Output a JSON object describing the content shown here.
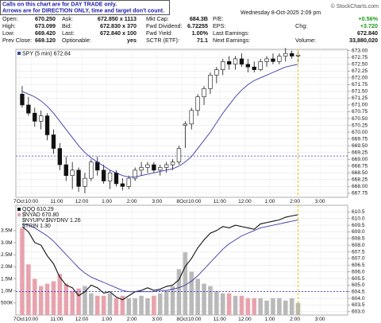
{
  "header": {
    "note": [
      "Calls on this chart are for DAY TRADE only.",
      "Arrows are for DIRECTION ONLY, time and target don't count."
    ],
    "date": "Wednesday  8-Oct-2025  2:09 pm",
    "credit": "© StockCharts.com",
    "quote": [
      [
        {
          "label": "Open:",
          "value": "670.250"
        },
        {
          "label": "Ask:",
          "value": "672.850 x 1113"
        },
        {
          "label": "Mkt Cap:",
          "value": "684.3B"
        },
        {
          "label": "P/E:"
        },
        {
          "value": "+0.56%",
          "color": "#1a9a1a"
        }
      ],
      [
        {
          "label": "High:",
          "value": "673.099"
        },
        {
          "label": "Bid:",
          "value": "672.830 x 370"
        },
        {
          "label": "Fwd Dividend:",
          "value": "6.72255"
        },
        {
          "label": "EPS:"
        },
        {
          "label": "Chg:",
          "value": "+3.720",
          "color": "#1a9a1a"
        }
      ],
      [
        {
          "label": "Low:",
          "value": "669.420"
        },
        {
          "label": "Last:",
          "value": "672.840 x 100"
        },
        {
          "label": "Fwd Yield:",
          "value": "1.00%"
        },
        {
          "label": "Last Earnings:"
        },
        {
          "value": "672.840"
        }
      ],
      [
        {
          "label": "Prev Close:",
          "value": "669.120"
        },
        {
          "label": "Optionable:",
          "value": "yes"
        },
        {
          "label": "SCTR (ETF):",
          "value": "71.1"
        },
        {
          "label": "Next Earnings:"
        },
        {
          "label": "Volume:",
          "value": "33,880,020"
        }
      ]
    ]
  },
  "chart_data": [
    {
      "type": "candlestick",
      "legend": "SPY (5 min) 672.84",
      "legend_color": "#3344aa",
      "categories": [
        "7Oct",
        null,
        "10:00",
        null,
        null,
        null,
        "11:00",
        null,
        null,
        null,
        "12:00",
        null,
        null,
        null,
        "1:00",
        null,
        null,
        null,
        "2:00",
        null,
        null,
        null,
        "3:00",
        null,
        null,
        null,
        "8Oct",
        null,
        "10:00",
        null,
        null,
        null,
        "11:00",
        null,
        null,
        null,
        "12:00",
        null,
        null,
        null,
        "1:00",
        null,
        null,
        null,
        "2:00",
        null,
        null,
        null,
        "3:00",
        null,
        null,
        null
      ],
      "open": [
        671.4,
        671.0,
        670.7,
        670.4,
        670.6,
        669.9,
        669.4,
        668.8,
        668.4,
        668.6,
        668.0,
        668.3,
        668.9,
        668.6,
        668.2,
        668.5,
        668.1,
        668.0,
        668.3,
        668.6,
        668.7,
        668.8,
        668.6,
        668.7,
        668.8,
        668.9,
        670.25,
        670.3,
        670.8,
        671.3,
        671.6,
        672.1,
        672.3,
        672.6,
        672.5,
        672.7,
        672.5,
        672.4,
        672.3,
        672.6,
        672.7,
        672.6,
        672.8,
        672.9,
        672.8,
        null,
        null,
        null,
        null,
        null,
        null,
        null
      ],
      "high": [
        671.7,
        671.3,
        670.9,
        670.8,
        670.7,
        670.1,
        669.6,
        669.1,
        668.9,
        668.7,
        668.5,
        669.0,
        669.1,
        668.8,
        668.6,
        668.6,
        668.3,
        668.4,
        668.7,
        668.9,
        668.9,
        668.9,
        668.8,
        668.9,
        669.0,
        669.5,
        670.4,
        670.9,
        671.4,
        671.7,
        672.2,
        672.4,
        672.7,
        672.8,
        672.8,
        672.9,
        672.7,
        672.6,
        672.7,
        672.8,
        672.9,
        672.9,
        673.1,
        673.0,
        672.95,
        null,
        null,
        null,
        null,
        null,
        null,
        null
      ],
      "low": [
        670.9,
        670.6,
        670.2,
        670.1,
        669.7,
        669.2,
        668.6,
        668.2,
        667.9,
        667.8,
        667.75,
        668.2,
        668.4,
        668.1,
        667.9,
        668.0,
        667.85,
        667.9,
        668.2,
        668.4,
        668.5,
        668.5,
        668.4,
        668.5,
        668.6,
        668.8,
        669.42,
        670.1,
        670.6,
        671.0,
        671.4,
        671.8,
        672.1,
        672.3,
        672.3,
        672.4,
        672.2,
        672.2,
        672.25,
        672.4,
        672.5,
        672.5,
        672.6,
        672.7,
        672.6,
        null,
        null,
        null,
        null,
        null,
        null,
        null
      ],
      "close": [
        671.0,
        670.7,
        670.4,
        670.6,
        669.9,
        669.4,
        668.8,
        668.4,
        668.6,
        668.0,
        668.3,
        668.9,
        668.6,
        668.2,
        668.5,
        668.1,
        668.0,
        668.3,
        668.6,
        668.7,
        668.8,
        668.6,
        668.7,
        668.8,
        668.9,
        669.4,
        670.3,
        670.8,
        671.3,
        671.6,
        672.1,
        672.3,
        672.6,
        672.5,
        672.7,
        672.5,
        672.4,
        672.3,
        672.6,
        672.7,
        672.6,
        672.8,
        672.9,
        672.8,
        672.84,
        null,
        null,
        null,
        null,
        null,
        null,
        null
      ],
      "up_color": "#ffffff",
      "down_color": "#111111",
      "ma_line": {
        "color": "#3a3aa8",
        "values": [
          671.5,
          671.4,
          671.3,
          671.15,
          670.95,
          670.7,
          670.4,
          670.1,
          669.8,
          669.5,
          669.25,
          669.05,
          668.9,
          668.75,
          668.6,
          668.5,
          668.4,
          668.35,
          668.35,
          668.4,
          668.45,
          668.5,
          668.55,
          668.6,
          668.65,
          668.75,
          668.9,
          669.1,
          669.4,
          669.7,
          670.0,
          670.35,
          670.7,
          671.0,
          671.3,
          671.55,
          671.75,
          671.9,
          672.0,
          672.1,
          672.2,
          672.3,
          672.4,
          672.45,
          672.5,
          null,
          null,
          null,
          null,
          null,
          null,
          null
        ]
      },
      "reference_line": 669.12,
      "reference_color": "#3a3ad0",
      "ylim": [
        667.6,
        673.05
      ],
      "yticks": [
        {
          "value": 667.75,
          "label": "667.75"
        },
        {
          "value": 668,
          "label": "668.00"
        },
        {
          "value": 668.25,
          "label": "668.25"
        },
        {
          "value": 668.5,
          "label": "668.50"
        },
        {
          "value": 668.75,
          "label": "668.75"
        },
        {
          "value": 669,
          "label": "669.00"
        },
        {
          "value": 669.25,
          "label": "669.25"
        },
        {
          "value": 669.5,
          "label": "669.50"
        },
        {
          "value": 669.75,
          "label": "669.75"
        },
        {
          "value": 670,
          "label": "670.00"
        },
        {
          "value": 670.25,
          "label": "670.25"
        },
        {
          "value": 670.5,
          "label": "670.50"
        },
        {
          "value": 670.75,
          "label": "670.75"
        },
        {
          "value": 671,
          "label": "671.00"
        },
        {
          "value": 671.25,
          "label": "671.25"
        },
        {
          "value": 671.5,
          "label": "671.50"
        },
        {
          "value": 671.75,
          "label": "671.75"
        },
        {
          "value": 672,
          "label": "672.00"
        },
        {
          "value": 672.25,
          "label": "672.25"
        },
        {
          "value": 672.5,
          "label": "672.50"
        },
        {
          "value": 672.75,
          "label": "672.75"
        },
        {
          "value": 673,
          "label": "673.00"
        }
      ],
      "grid": true
    },
    {
      "type": "line",
      "categories": [
        "7Oct",
        null,
        "10:00",
        null,
        null,
        null,
        "11:00",
        null,
        null,
        null,
        "12:00",
        null,
        null,
        null,
        "1:00",
        null,
        null,
        null,
        "2:00",
        null,
        null,
        null,
        "3:00",
        null,
        null,
        null,
        "8Oct",
        null,
        "10:00",
        null,
        null,
        null,
        "11:00",
        null,
        null,
        null,
        "12:00",
        null,
        null,
        null,
        "1:00",
        null,
        null,
        null,
        "2:00",
        null,
        null,
        null,
        "3:00",
        null,
        null,
        null
      ],
      "series": [
        {
          "name": "QQQ 610.29",
          "color": "#111111",
          "values": [
            609.4,
            609.0,
            608.2,
            608.0,
            607.2,
            606.6,
            605.6,
            605.0,
            604.8,
            604.2,
            604.5,
            605.0,
            604.8,
            604.4,
            604.5,
            604.1,
            603.9,
            604.2,
            604.5,
            604.6,
            604.8,
            604.6,
            604.7,
            604.9,
            605.0,
            605.4,
            606.4,
            607.0,
            607.8,
            608.4,
            608.9,
            609.1,
            609.4,
            609.3,
            609.5,
            609.4,
            609.3,
            609.2,
            609.6,
            609.7,
            609.8,
            609.9,
            610.1,
            610.2,
            610.29,
            null,
            null,
            null,
            null,
            null,
            null,
            null
          ]
        },
        {
          "name": "$NYAD 670.80",
          "color": "#e7a3ad",
          "axis": "y2",
          "values": [
            3600000,
            2100000,
            1500000,
            1200000,
            1300000,
            1400000,
            1700000,
            1300000,
            1000000,
            1100000,
            1200000,
            900000,
            800000,
            800000,
            900000,
            700000,
            800000,
            700000,
            700000,
            800000,
            700000,
            800000,
            900000,
            1000000,
            1200000,
            1900000,
            2600000,
            1800000,
            1500000,
            1300000,
            1200000,
            1000000,
            900000,
            900000,
            800000,
            800000,
            700000,
            700000,
            700000,
            600000,
            700000,
            700000,
            600000,
            700000,
            500000,
            null,
            null,
            null,
            null,
            null,
            null,
            null
          ]
        }
      ],
      "up_bar_color": "#b9b9b9",
      "legend_notes": [
        "$NYUPV:$NYDNV 1.26",
        "$TRIN 1.30"
      ],
      "ma_line": {
        "color": "#3a3aa8",
        "values": [
          609.6,
          609.5,
          609.3,
          609.0,
          608.7,
          608.3,
          607.8,
          607.3,
          606.8,
          606.3,
          605.9,
          605.6,
          605.4,
          605.2,
          605.0,
          604.8,
          604.6,
          604.5,
          604.5,
          604.5,
          604.5,
          604.5,
          604.6,
          604.6,
          604.7,
          604.8,
          605.0,
          605.3,
          605.7,
          606.2,
          606.7,
          607.2,
          607.7,
          608.1,
          608.4,
          608.7,
          608.9,
          609.1,
          609.3,
          609.4,
          609.5,
          609.6,
          609.7,
          609.8,
          609.9,
          null,
          null,
          null,
          null,
          null,
          null,
          null
        ]
      },
      "reference_line": 604.51,
      "reference_color": "#3a3ad0",
      "ylim": [
        602.75,
        611.0
      ],
      "yticks": [
        {
          "value": 603,
          "label": "603.0"
        },
        {
          "value": 603.5,
          "label": "603.5"
        },
        {
          "value": 604,
          "label": "604.0"
        },
        {
          "value": 604.5,
          "label": "604.5"
        },
        {
          "value": 605,
          "label": "605.0"
        },
        {
          "value": 605.5,
          "label": "605.5"
        },
        {
          "value": 606,
          "label": "606.0"
        },
        {
          "value": 606.5,
          "label": "606.5"
        },
        {
          "value": 607,
          "label": "607.0"
        },
        {
          "value": 607.5,
          "label": "607.5"
        },
        {
          "value": 608,
          "label": "608.0"
        },
        {
          "value": 608.5,
          "label": "608.5"
        },
        {
          "value": 609,
          "label": "609.0"
        },
        {
          "value": 609.5,
          "label": "609.5"
        },
        {
          "value": 610,
          "label": "610.0"
        },
        {
          "value": 610.5,
          "label": "610.5"
        }
      ],
      "y2lim": [
        0,
        4550000
      ],
      "y2ticks": [
        {
          "value": 500000,
          "label": "500K"
        },
        {
          "value": 1000000,
          "label": "1.0M"
        },
        {
          "value": 1500000,
          "label": "1.5M"
        },
        {
          "value": 2000000,
          "label": "2.0M"
        },
        {
          "value": 2500000,
          "label": "2.5M"
        },
        {
          "value": 3000000,
          "label": "3.0M"
        },
        {
          "value": 3500000,
          "label": "3.5M"
        }
      ],
      "grid": true
    }
  ]
}
